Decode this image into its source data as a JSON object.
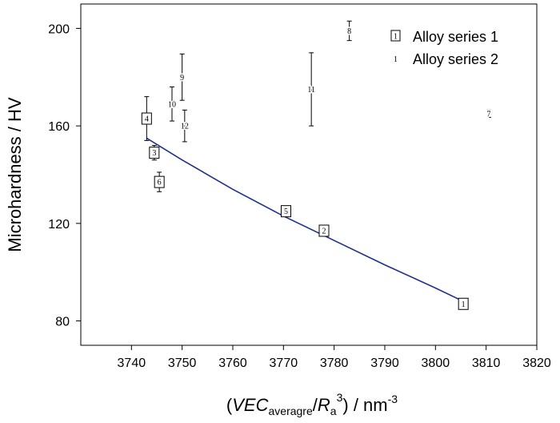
{
  "chart_data": {
    "type": "scatter",
    "title": "",
    "ylabel": "Microhardness / HV",
    "xlabel": {
      "open": "(",
      "var1": "VEC",
      "sub1": "averagre",
      "slash": "/",
      "var2": "R",
      "sub2": "a",
      "sup2": "3",
      "close": ")",
      "unit": " / nm",
      "unit_sup": "-3"
    },
    "xlim": [
      3730,
      3820
    ],
    "ylim": [
      70,
      210
    ],
    "x_ticks": [
      3740,
      3750,
      3760,
      3770,
      3780,
      3790,
      3800,
      3810,
      3820
    ],
    "y_ticks": [
      80,
      120,
      160,
      200
    ],
    "legend_position": "top-right",
    "series": [
      {
        "name": "Alloy series 1",
        "marker": "boxed-number",
        "legend_marker_label": "1",
        "points": [
          {
            "label": "1",
            "x": 3805.5,
            "y": 87
          },
          {
            "label": "2",
            "x": 3778,
            "y": 117
          },
          {
            "label": "3",
            "x": 3744.5,
            "y": 149,
            "err": 3
          },
          {
            "label": "4",
            "x": 3743,
            "y": 163,
            "err": 9
          },
          {
            "label": "5",
            "x": 3770.5,
            "y": 125
          },
          {
            "label": "6",
            "x": 3745.5,
            "y": 137,
            "err": 4
          }
        ]
      },
      {
        "name": "Alloy series 2",
        "marker": "number-with-errorbar",
        "legend_marker_label": "1",
        "points": [
          {
            "label": "7",
            "x": 3810.5,
            "y": 165,
            "err": 1.5
          },
          {
            "label": "8",
            "x": 3783,
            "y": 199,
            "err": 4
          },
          {
            "label": "9",
            "x": 3750,
            "y": 180,
            "err": 9.5
          },
          {
            "label": "10",
            "x": 3748,
            "y": 169,
            "err": 7
          },
          {
            "label": "11",
            "x": 3775.5,
            "y": 175,
            "err": 15
          },
          {
            "label": "12",
            "x": 3750.5,
            "y": 160,
            "err": 6.5
          }
        ]
      }
    ],
    "fit_curve": {
      "color": "#1f2f8f",
      "points": [
        [
          3743,
          155
        ],
        [
          3750,
          146
        ],
        [
          3760,
          134
        ],
        [
          3770,
          123
        ],
        [
          3780,
          113
        ],
        [
          3790,
          103
        ],
        [
          3800,
          93.5
        ],
        [
          3805.5,
          88
        ]
      ]
    }
  }
}
